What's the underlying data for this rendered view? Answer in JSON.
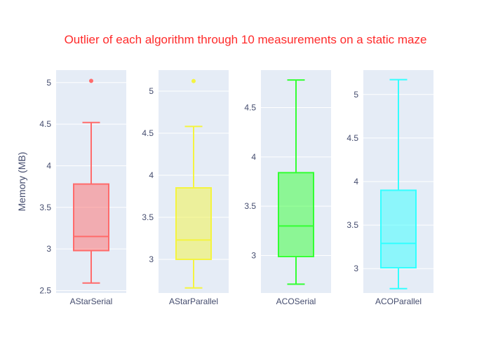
{
  "chart_data": {
    "type": "box",
    "title": "Outlier of each algorithm through 10 measurements on a static maze",
    "ylabel": "Memory (MB)",
    "title_color": "#ff2a2a",
    "panels": [
      {
        "name": "AStarSerial",
        "color": "#ff6b6b",
        "ylim": [
          2.47,
          5.15
        ],
        "ticks": [
          2.5,
          3,
          3.5,
          4,
          4.5,
          5
        ],
        "tick_labels": [
          "2.5",
          "3",
          "3.5",
          "4",
          "4.5",
          "5"
        ],
        "min": 2.59,
        "q1": 2.98,
        "median": 3.15,
        "q3": 3.78,
        "max": 4.52,
        "outliers": [
          5.02
        ]
      },
      {
        "name": "AStarParallel",
        "color": "#f4f440",
        "ylim": [
          2.6,
          5.25
        ],
        "ticks": [
          3,
          3.5,
          4,
          4.5,
          5
        ],
        "tick_labels": [
          "3",
          "3.5",
          "4",
          "4.5",
          "5"
        ],
        "min": 2.66,
        "q1": 3.0,
        "median": 3.23,
        "q3": 3.85,
        "max": 4.58,
        "outliers": [
          5.12
        ]
      },
      {
        "name": "ACOSerial",
        "color": "#33ff33",
        "ylim": [
          2.62,
          4.88
        ],
        "ticks": [
          3,
          3.5,
          4,
          4.5
        ],
        "tick_labels": [
          "3",
          "3.5",
          "4",
          "4.5"
        ],
        "min": 2.71,
        "q1": 2.99,
        "median": 3.3,
        "q3": 3.84,
        "max": 4.78,
        "outliers": []
      },
      {
        "name": "ACOParallel",
        "color": "#33ffff",
        "ylim": [
          2.72,
          5.28
        ],
        "ticks": [
          3,
          3.5,
          4,
          4.5,
          5
        ],
        "tick_labels": [
          "3",
          "3.5",
          "4",
          "4.5",
          "5"
        ],
        "min": 2.77,
        "q1": 3.01,
        "median": 3.29,
        "q3": 3.9,
        "max": 5.17,
        "outliers": []
      }
    ]
  }
}
